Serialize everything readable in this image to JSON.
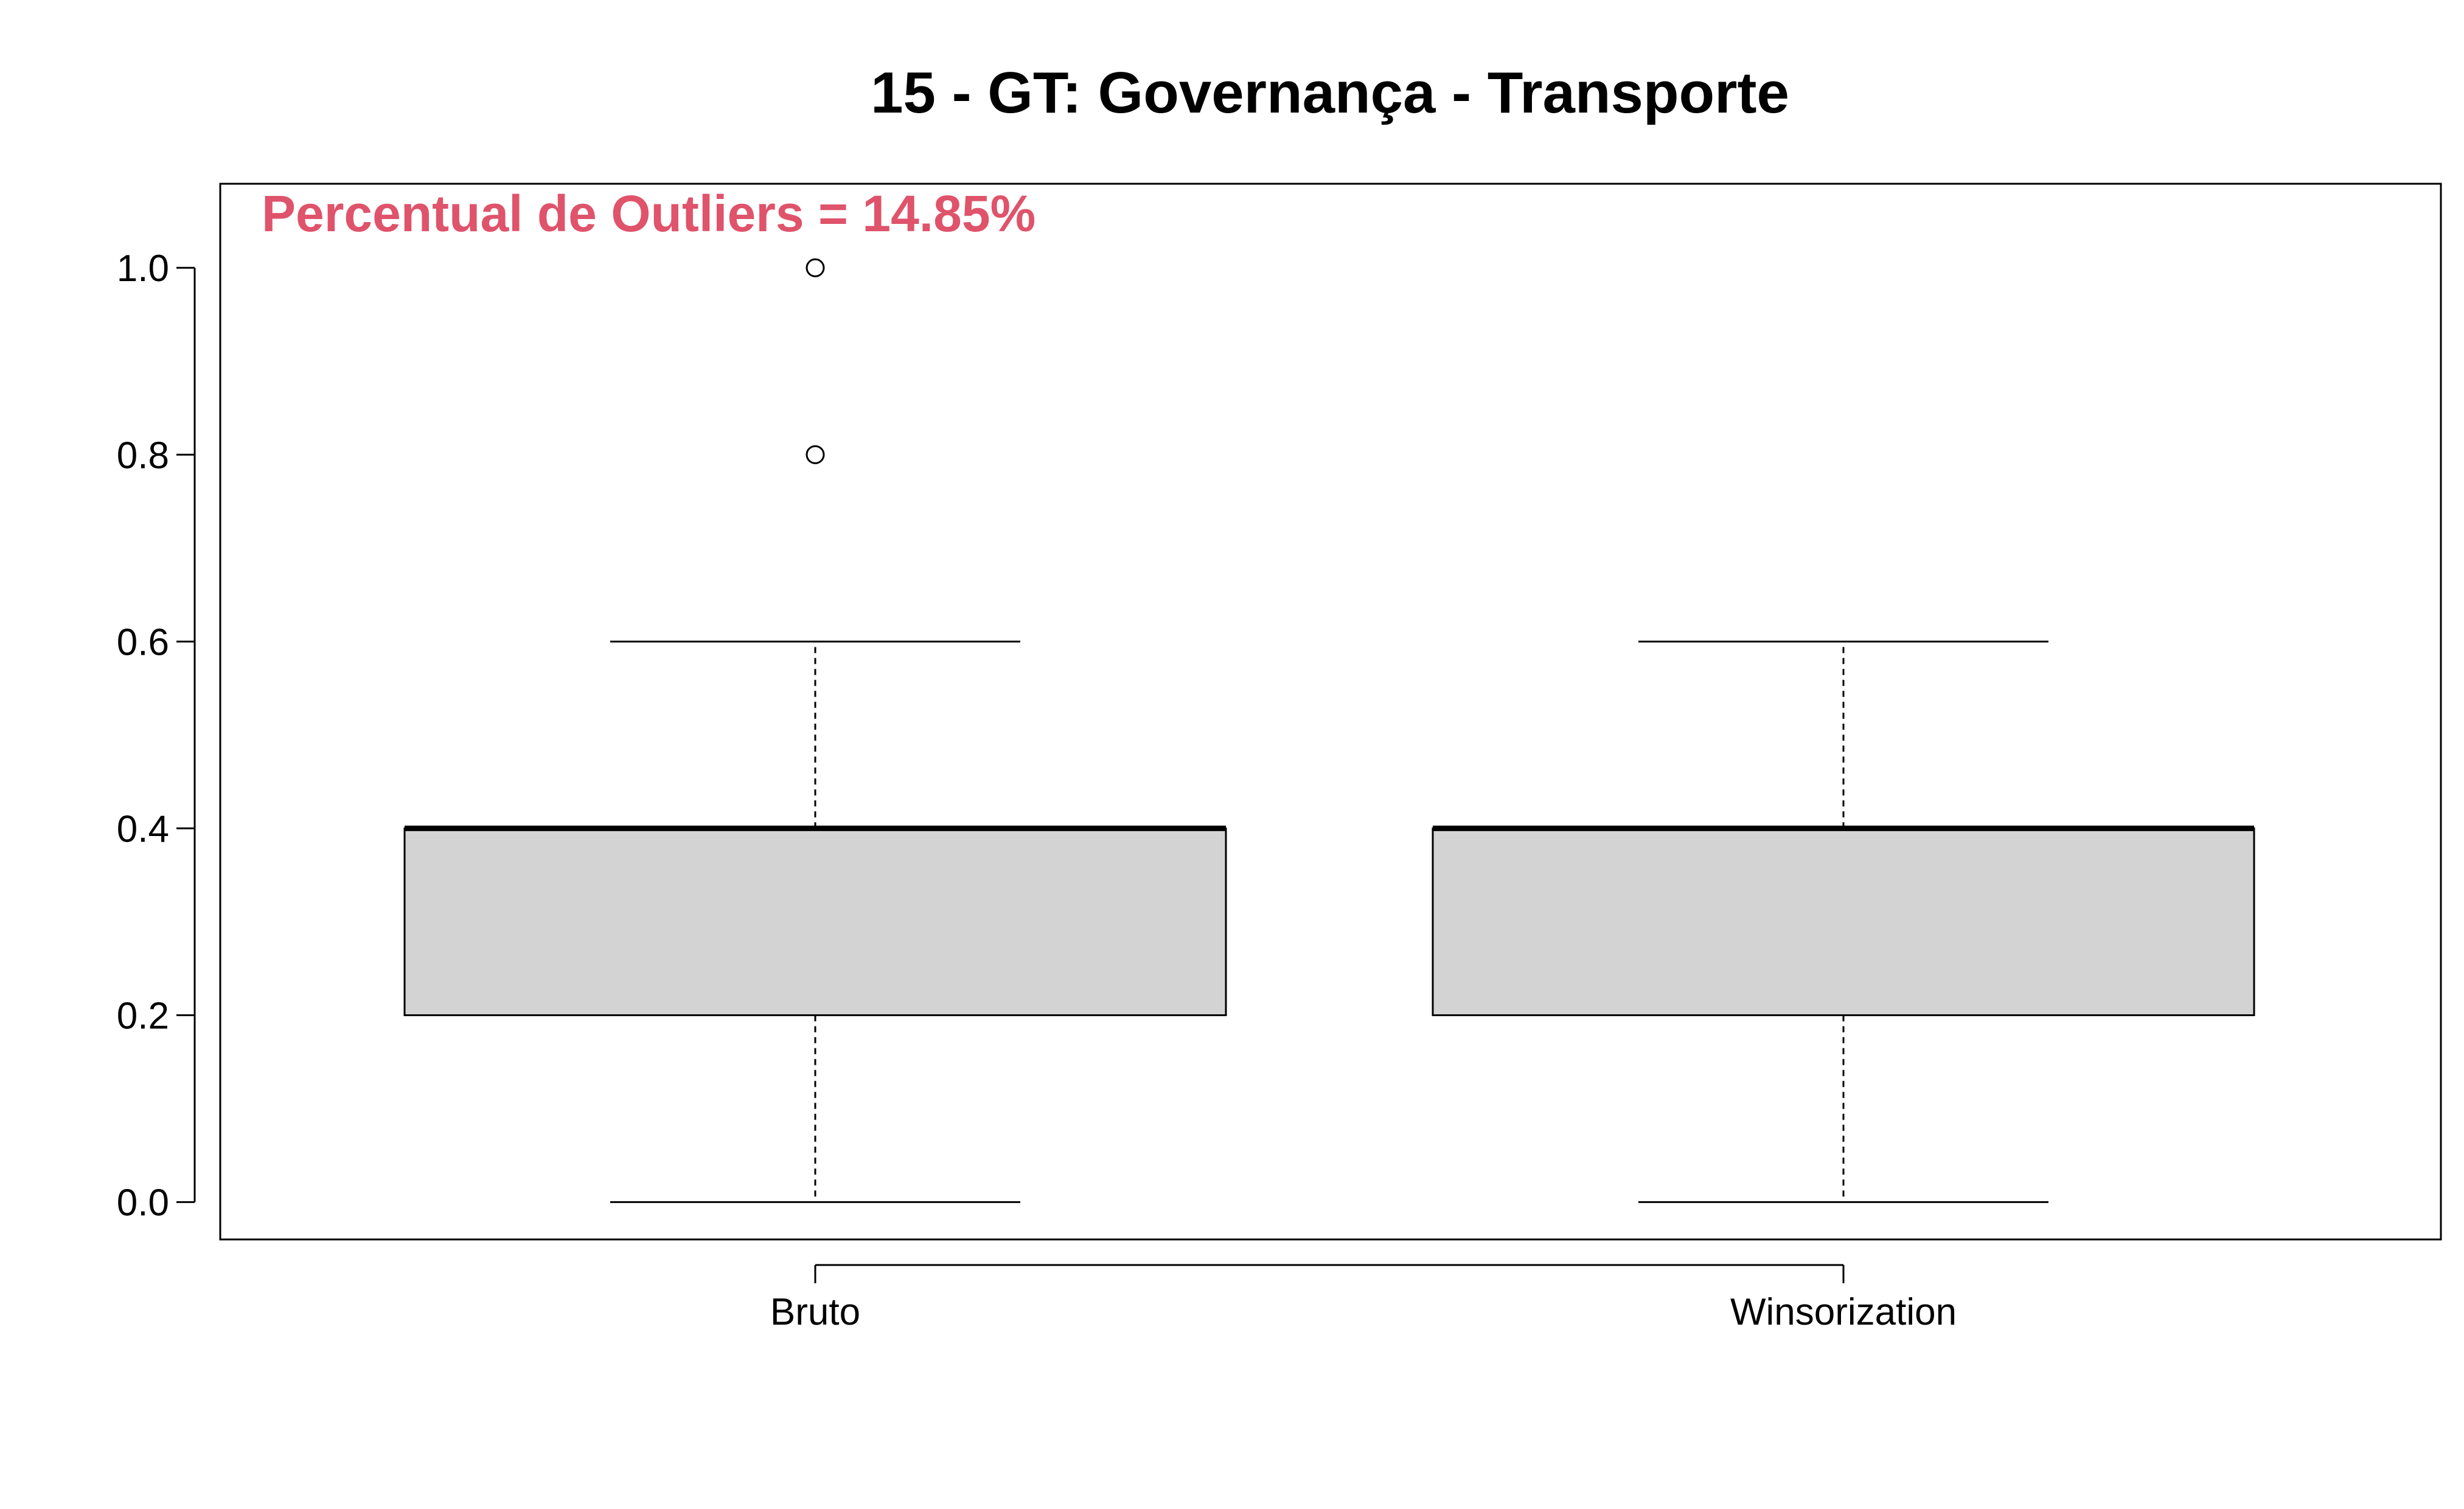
{
  "chart_data": {
    "type": "boxplot",
    "title": "15 - GT: Governança - Transporte",
    "annotation": "Percentual de Outliers = 14.85%",
    "xlabel": "",
    "ylabel": "",
    "ylim": [
      -0.04,
      1.09
    ],
    "yticks": [
      0.0,
      0.2,
      0.4,
      0.6,
      0.8,
      1.0
    ],
    "ytick_labels": [
      "0.0",
      "0.2",
      "0.4",
      "0.6",
      "0.8",
      "1.0"
    ],
    "categories": [
      "Bruto",
      "Winsorization"
    ],
    "boxes": [
      {
        "label": "Bruto",
        "min": 0.0,
        "q1": 0.2,
        "median": 0.4,
        "q3": 0.4,
        "max": 0.6,
        "outliers": [
          0.8,
          1.0
        ]
      },
      {
        "label": "Winsorization",
        "min": 0.0,
        "q1": 0.2,
        "median": 0.4,
        "q3": 0.4,
        "max": 0.6,
        "outliers": []
      }
    ],
    "grid": false,
    "colors": {
      "box_fill": "#d3d3d3",
      "stroke": "#000000",
      "annotation": "#df536b"
    }
  }
}
